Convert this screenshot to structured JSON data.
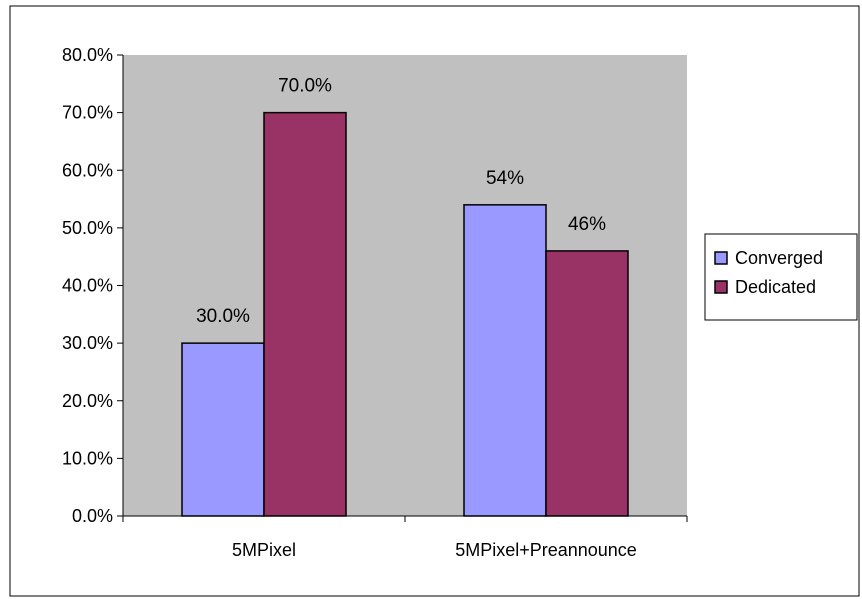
{
  "chart_data": {
    "type": "bar",
    "categories": [
      "5MPixel",
      "5MPixel+Preannounce"
    ],
    "series": [
      {
        "name": "Converged",
        "color": "#9999ff",
        "values": [
          30.0,
          54.0
        ],
        "labels": [
          "30.0%",
          "54%"
        ]
      },
      {
        "name": "Dedicated",
        "color": "#993366",
        "values": [
          70.0,
          46.0
        ],
        "labels": [
          "70.0%",
          "46%"
        ]
      }
    ],
    "ylim": [
      0,
      80
    ],
    "yticks": [
      0,
      10,
      20,
      30,
      40,
      50,
      60,
      70,
      80
    ],
    "ytick_labels": [
      "0.0%",
      "10.0%",
      "20.0%",
      "30.0%",
      "40.0%",
      "50.0%",
      "60.0%",
      "70.0%",
      "80.0%"
    ],
    "grid": false,
    "plot_background": "#c0c0c0",
    "legend_position": "right"
  }
}
